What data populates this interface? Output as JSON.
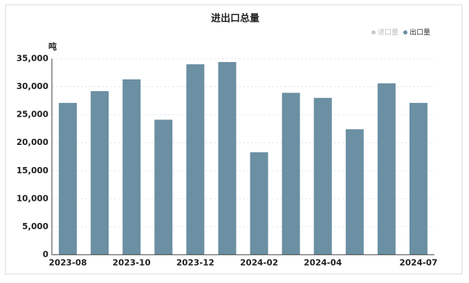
{
  "chart_data": {
    "type": "bar",
    "title": "进出口总量",
    "y_unit": "吨",
    "categories": [
      "2023-08",
      null,
      "2023-10",
      null,
      "2023-12",
      null,
      "2024-02",
      null,
      "2024-04",
      null,
      null,
      "2024-07"
    ],
    "series": [
      {
        "name": "出口量",
        "color": "#6b8fa3",
        "values": [
          27100,
          29200,
          31300,
          24100,
          34000,
          34400,
          18300,
          28900,
          28000,
          22400,
          30600,
          27100
        ]
      }
    ],
    "inactive_legend": [
      {
        "name": "进口量",
        "color": "#c8c8c8"
      }
    ],
    "ylim": [
      0,
      35000
    ],
    "yticks": [
      0,
      {
        "value": 5000,
        "label": "5,000"
      },
      {
        "value": 10000,
        "label": "10,000"
      },
      {
        "value": 15000,
        "label": "15,000"
      },
      {
        "value": 20000,
        "label": "20,000"
      },
      {
        "value": 25000,
        "label": "25,000"
      },
      {
        "value": 30000,
        "label": "30,000"
      },
      {
        "value": 35000,
        "label": "35,000"
      }
    ],
    "grid": true
  }
}
